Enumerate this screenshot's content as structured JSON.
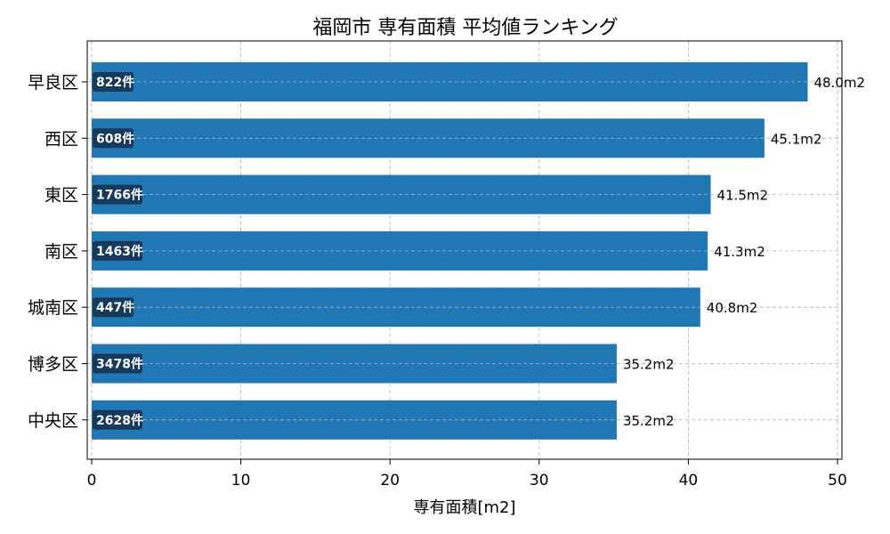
{
  "chart_data": {
    "type": "bar",
    "orientation": "horizontal",
    "title": "福岡市 専有面積 平均値ランキング",
    "xlabel": "専有面積[m2]",
    "ylabel": "",
    "xlim": [
      0,
      50
    ],
    "x_ticks": [
      "0",
      "10",
      "20",
      "30",
      "40",
      "50"
    ],
    "grid": true,
    "bar_color": "#1f77b4",
    "badge_color": "#163a5c",
    "categories": [
      "早良区",
      "西区",
      "東区",
      "南区",
      "城南区",
      "博多区",
      "中央区"
    ],
    "values": [
      48.0,
      45.1,
      41.5,
      41.3,
      40.8,
      35.2,
      35.2
    ],
    "value_labels": [
      "48.0m2",
      "45.1m2",
      "41.5m2",
      "41.3m2",
      "40.8m2",
      "35.2m2",
      "35.2m2"
    ],
    "counts": [
      "822件",
      "608件",
      "1766件",
      "1463件",
      "447件",
      "3478件",
      "2628件"
    ]
  }
}
